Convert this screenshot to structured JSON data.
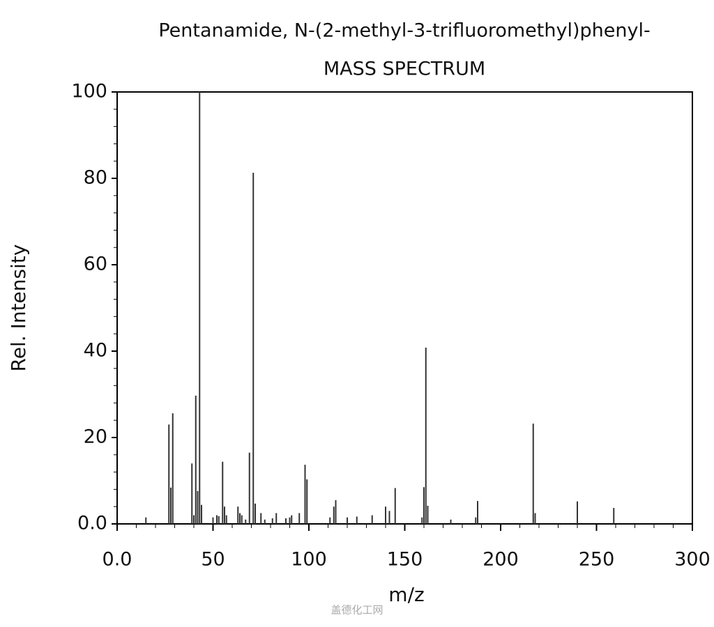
{
  "chart_data": {
    "type": "bar",
    "title": "Pentanamide, N-(2-methyl-3-trifluoromethyl)phenyl-",
    "subtitle": "MASS SPECTRUM",
    "x_label": "m/z",
    "y_label": "Rel. Intensity",
    "watermark": "盖德化工网",
    "color": "#333333",
    "x": [
      15,
      27,
      28,
      29,
      39,
      40,
      41,
      42,
      43,
      44,
      50,
      52,
      53,
      55,
      56,
      57,
      63,
      64,
      65,
      67,
      69,
      71,
      72,
      75,
      77,
      81,
      83,
      88,
      90,
      91,
      95,
      98,
      99,
      111,
      113,
      114,
      120,
      125,
      133,
      140,
      142,
      145,
      159,
      160,
      161,
      162,
      174,
      187,
      188,
      217,
      218,
      240,
      259
    ],
    "values": [
      1.5,
      23,
      8.4,
      25.6,
      14,
      2,
      29.7,
      7.6,
      100,
      4.4,
      1.5,
      2,
      1.8,
      14.4,
      4,
      2,
      4,
      2.5,
      2,
      1,
      16.5,
      81.3,
      4.7,
      2.5,
      1,
      1.3,
      2.5,
      1.3,
      1.5,
      2,
      2.5,
      13.7,
      10.3,
      1.5,
      4,
      5.5,
      1.5,
      1.7,
      2,
      4,
      3,
      8.3,
      1.5,
      8.5,
      40.8,
      4.2,
      1,
      1.5,
      5.3,
      23.2,
      2.5,
      5.2,
      3.7
    ],
    "xlim": [
      0,
      300
    ],
    "xticks": [
      {
        "value": 0,
        "label": "0.0"
      },
      50,
      100,
      150,
      200,
      250,
      300
    ],
    "ylim": [
      0,
      100
    ],
    "yticks": [
      {
        "value": 0,
        "label": "0.0"
      },
      20,
      40,
      60,
      80,
      100
    ]
  }
}
